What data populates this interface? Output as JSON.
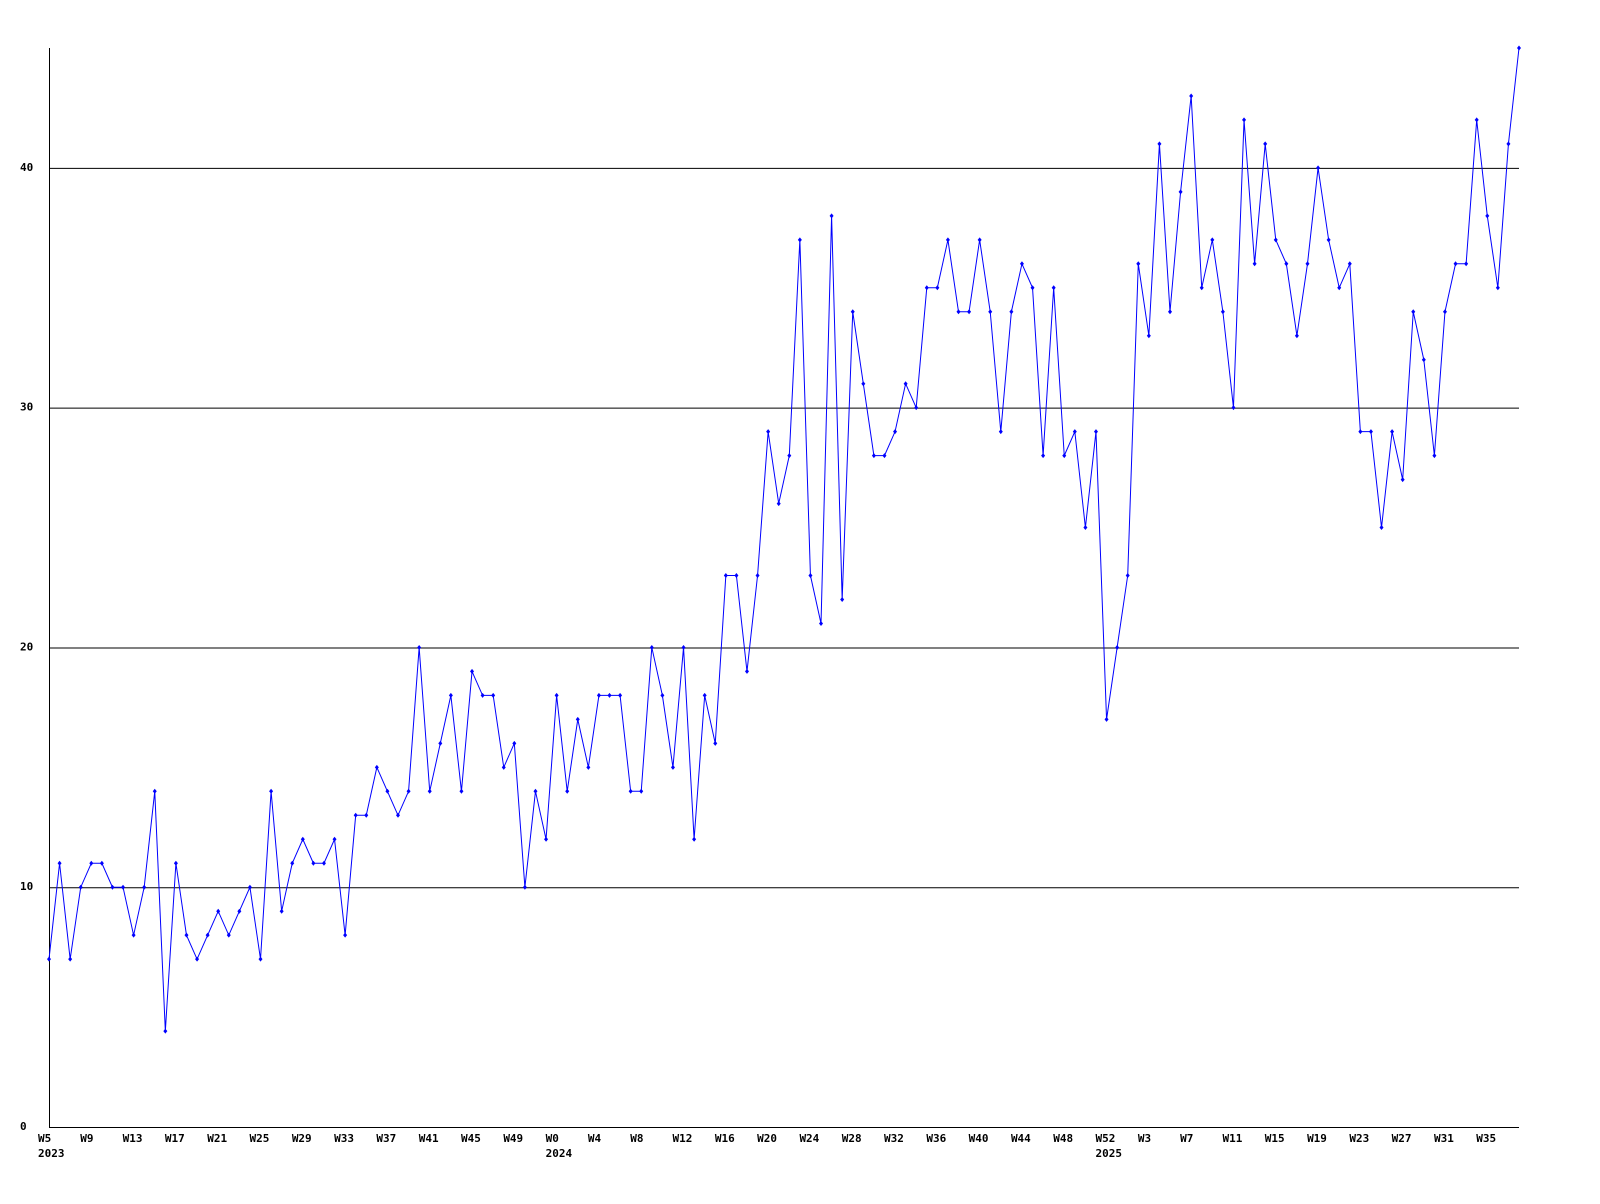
{
  "chart_data": {
    "type": "line",
    "categories": [
      "W5",
      null,
      null,
      null,
      "W9",
      null,
      null,
      null,
      "W13",
      null,
      null,
      null,
      "W17",
      null,
      null,
      null,
      "W21",
      null,
      null,
      null,
      "W25",
      null,
      null,
      null,
      "W29",
      null,
      null,
      null,
      "W33",
      null,
      null,
      null,
      "W37",
      null,
      null,
      null,
      "W41",
      null,
      null,
      null,
      "W45",
      null,
      null,
      null,
      "W49",
      null,
      null,
      null,
      "W0",
      null,
      null,
      null,
      "W4",
      null,
      null,
      null,
      "W8",
      null,
      null,
      null,
      "W12",
      null,
      null,
      null,
      "W16",
      null,
      null,
      null,
      "W20",
      null,
      null,
      null,
      "W24",
      null,
      null,
      null,
      "W28",
      null,
      null,
      null,
      "W32",
      null,
      null,
      null,
      "W36",
      null,
      null,
      null,
      "W40",
      null,
      null,
      null,
      "W44",
      null,
      null,
      null,
      "W48",
      null,
      null,
      null,
      "W52",
      null,
      null,
      null,
      "W3",
      null,
      null,
      null,
      "W7",
      null,
      null,
      null,
      "W11",
      null,
      null,
      null,
      "W15",
      null,
      null,
      null,
      "W19",
      null,
      null,
      null,
      "W23",
      null,
      null,
      null,
      "W27",
      null,
      null,
      null,
      "W31",
      null,
      null,
      null,
      "W35",
      null,
      null,
      null
    ],
    "category_years": [
      "2023",
      null,
      null,
      null,
      null,
      null,
      null,
      null,
      null,
      null,
      null,
      null,
      null,
      null,
      null,
      null,
      null,
      null,
      null,
      null,
      null,
      null,
      null,
      null,
      null,
      null,
      null,
      null,
      null,
      null,
      null,
      null,
      null,
      null,
      null,
      null,
      null,
      null,
      null,
      null,
      null,
      null,
      null,
      null,
      null,
      null,
      null,
      null,
      "2024",
      null,
      null,
      null,
      null,
      null,
      null,
      null,
      null,
      null,
      null,
      null,
      null,
      null,
      null,
      null,
      null,
      null,
      null,
      null,
      null,
      null,
      null,
      null,
      null,
      null,
      null,
      null,
      null,
      null,
      null,
      null,
      null,
      null,
      null,
      null,
      null,
      null,
      null,
      null,
      null,
      null,
      null,
      null,
      null,
      null,
      null,
      null,
      null,
      null,
      null,
      null,
      "2025",
      null,
      null,
      null,
      null,
      null,
      null,
      null,
      null,
      null,
      null,
      null,
      null,
      null,
      null,
      null,
      null,
      null,
      null,
      null,
      null,
      null,
      null,
      null,
      null,
      null,
      null,
      null,
      null,
      null,
      null,
      null,
      null,
      null,
      null,
      null,
      null,
      null,
      null,
      null
    ],
    "series": [
      {
        "color": "#0000ff",
        "values": [
          7,
          11,
          7,
          10,
          11,
          11,
          10,
          10,
          8,
          10,
          14,
          4,
          11,
          8,
          7,
          8,
          9,
          8,
          9,
          10,
          7,
          14,
          9,
          11,
          12,
          11,
          11,
          12,
          8,
          13,
          13,
          15,
          14,
          13,
          14,
          20,
          14,
          16,
          18,
          14,
          19,
          18,
          18,
          15,
          16,
          10,
          14,
          12,
          18,
          14,
          17,
          15,
          18,
          18,
          18,
          14,
          14,
          20,
          18,
          15,
          20,
          12,
          18,
          16,
          23,
          23,
          19,
          23,
          29,
          26,
          28,
          37,
          23,
          21,
          38,
          22,
          34,
          31,
          28,
          28,
          29,
          31,
          30,
          35,
          35,
          37,
          34,
          34,
          37,
          34,
          29,
          34,
          36,
          35,
          28,
          35,
          28,
          29,
          25,
          29,
          17,
          20,
          23,
          36,
          33,
          41,
          34,
          39,
          43,
          35,
          37,
          34,
          30,
          42,
          36,
          41,
          37,
          36,
          33,
          36,
          40,
          37,
          35,
          36,
          29,
          29,
          25,
          29,
          27,
          34,
          32,
          28,
          34,
          36,
          36,
          42,
          38,
          35,
          41,
          45
        ]
      }
    ],
    "ylim": [
      0,
      45
    ],
    "yticks": [
      0,
      10,
      20,
      30,
      40
    ],
    "grid": true
  }
}
